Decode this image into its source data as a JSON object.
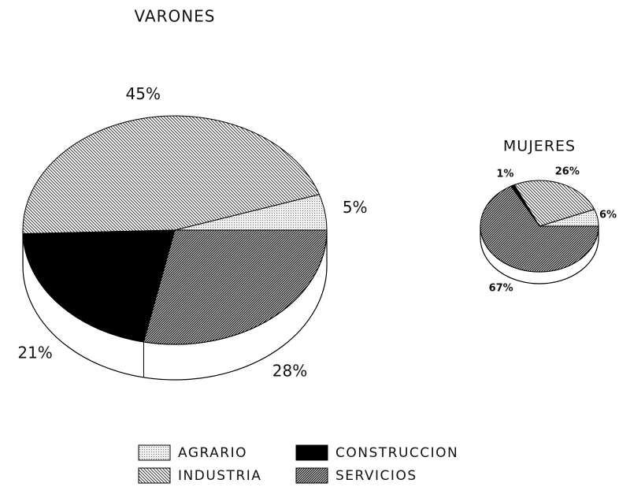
{
  "chart_data": [
    {
      "type": "pie",
      "title": "VARONES",
      "categories": [
        "AGRARIO",
        "INDUSTRIA",
        "CONSTRUCCION",
        "SERVICIOS"
      ],
      "values": [
        5,
        45,
        21,
        28
      ],
      "value_labels": [
        "5%",
        "45%",
        "21%",
        "28%"
      ],
      "fills": [
        "dots",
        "hatch-light",
        "solid",
        "hatch-dense"
      ]
    },
    {
      "type": "pie",
      "title": "MUJERES",
      "categories": [
        "AGRARIO",
        "INDUSTRIA",
        "CONSTRUCCION",
        "SERVICIOS"
      ],
      "values": [
        6,
        26,
        1,
        67
      ],
      "value_labels": [
        "6%",
        "26%",
        "1%",
        "67%"
      ],
      "fills": [
        "dots",
        "hatch-light",
        "solid",
        "hatch-dense"
      ]
    }
  ]
}
